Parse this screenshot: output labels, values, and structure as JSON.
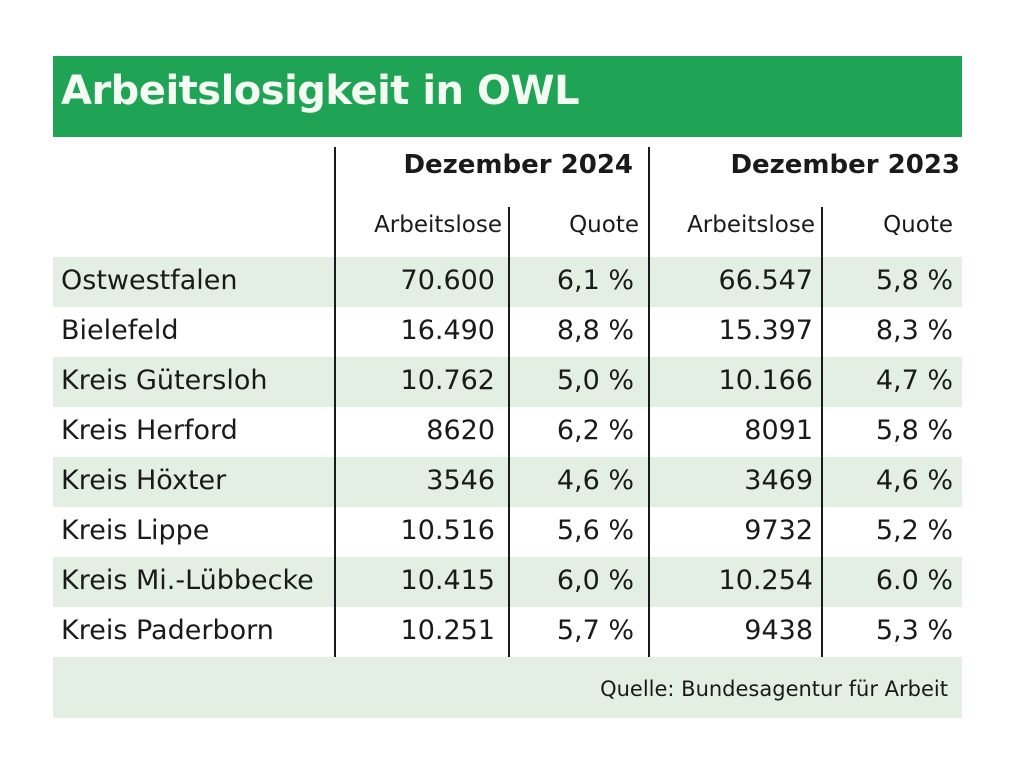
{
  "title": "Arbeitslosigkeit in OWL",
  "colors": {
    "header_green": "#1fa354",
    "row_tint": "#e3efe2"
  },
  "table": {
    "groups": [
      "Dezember 2024",
      "Dezember 2023"
    ],
    "subheaders": [
      "Arbeitslose",
      "Quote",
      "Arbeitslose",
      "Quote"
    ],
    "rows": [
      {
        "region": "Ostwestfalen",
        "values": [
          "70.600",
          "6,1 %",
          "66.547",
          "5,8 %"
        ]
      },
      {
        "region": "Bielefeld",
        "values": [
          "16.490",
          "8,8 %",
          "15.397",
          "8,3 %"
        ]
      },
      {
        "region": "Kreis Gütersloh",
        "values": [
          "10.762",
          "5,0 %",
          "10.166",
          "4,7 %"
        ]
      },
      {
        "region": "Kreis Herford",
        "values": [
          "8620",
          "6,2 %",
          "8091",
          "5,8 %"
        ]
      },
      {
        "region": "Kreis Höxter",
        "values": [
          "3546",
          "4,6 %",
          "3469",
          "4,6 %"
        ]
      },
      {
        "region": "Kreis Lippe",
        "values": [
          "10.516",
          "5,6 %",
          "9732",
          "5,2 %"
        ]
      },
      {
        "region": "Kreis Mi.-Lübbecke",
        "values": [
          "10.415",
          "6,0 %",
          "10.254",
          "6.0 %"
        ]
      },
      {
        "region": "Kreis Paderborn",
        "values": [
          "10.251",
          "5,7 %",
          "9438",
          "5,3 %"
        ]
      }
    ]
  },
  "source": "Quelle: Bundesagentur für Arbeit"
}
